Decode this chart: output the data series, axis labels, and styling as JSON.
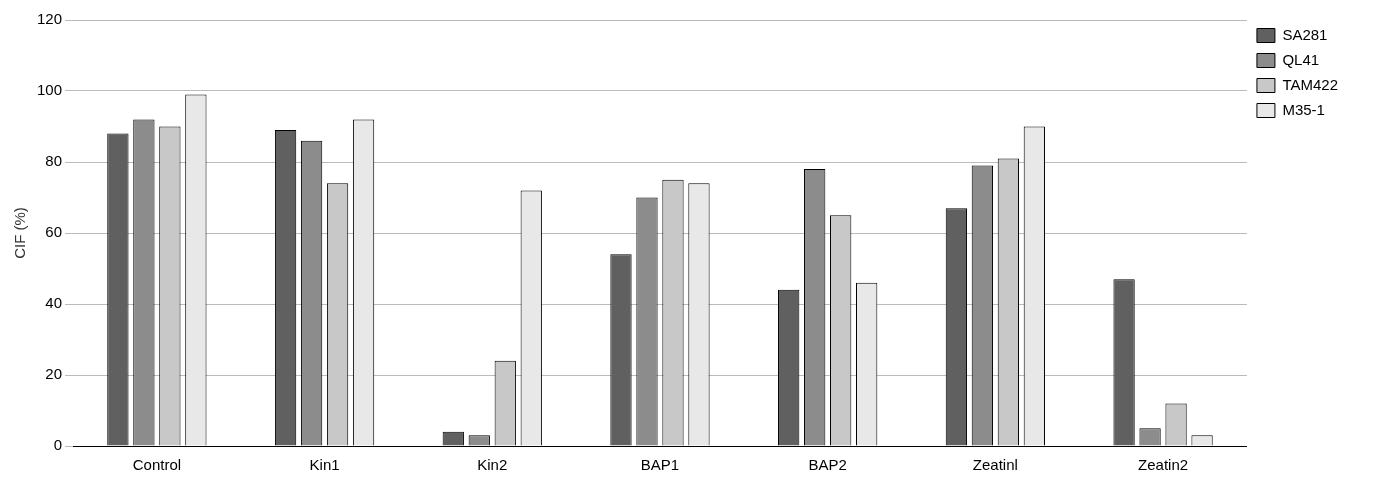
{
  "chart_data": {
    "type": "bar",
    "ylabel": "CIF (%)",
    "categories": [
      "Control",
      "Kin1",
      "Kin2",
      "BAP1",
      "BAP2",
      "Zeatinl",
      "Zeatin2"
    ],
    "series": [
      {
        "name": "SA281",
        "color": "#606060",
        "values": [
          88,
          89,
          4,
          54,
          44,
          67,
          47
        ]
      },
      {
        "name": "QL41",
        "color": "#8c8c8c",
        "values": [
          92,
          86,
          3,
          70,
          78,
          79,
          5
        ]
      },
      {
        "name": "TAM422",
        "color": "#c8c8c8",
        "values": [
          90,
          74,
          24,
          75,
          65,
          81,
          12
        ]
      },
      {
        "name": "M35-1",
        "color": "#e8e8e8",
        "values": [
          99,
          92,
          72,
          74,
          46,
          90,
          3
        ]
      }
    ],
    "ylim": [
      0,
      120
    ],
    "yticks": [
      0,
      20,
      40,
      60,
      80,
      100,
      120
    ],
    "grid": "y",
    "legend": "top right"
  }
}
